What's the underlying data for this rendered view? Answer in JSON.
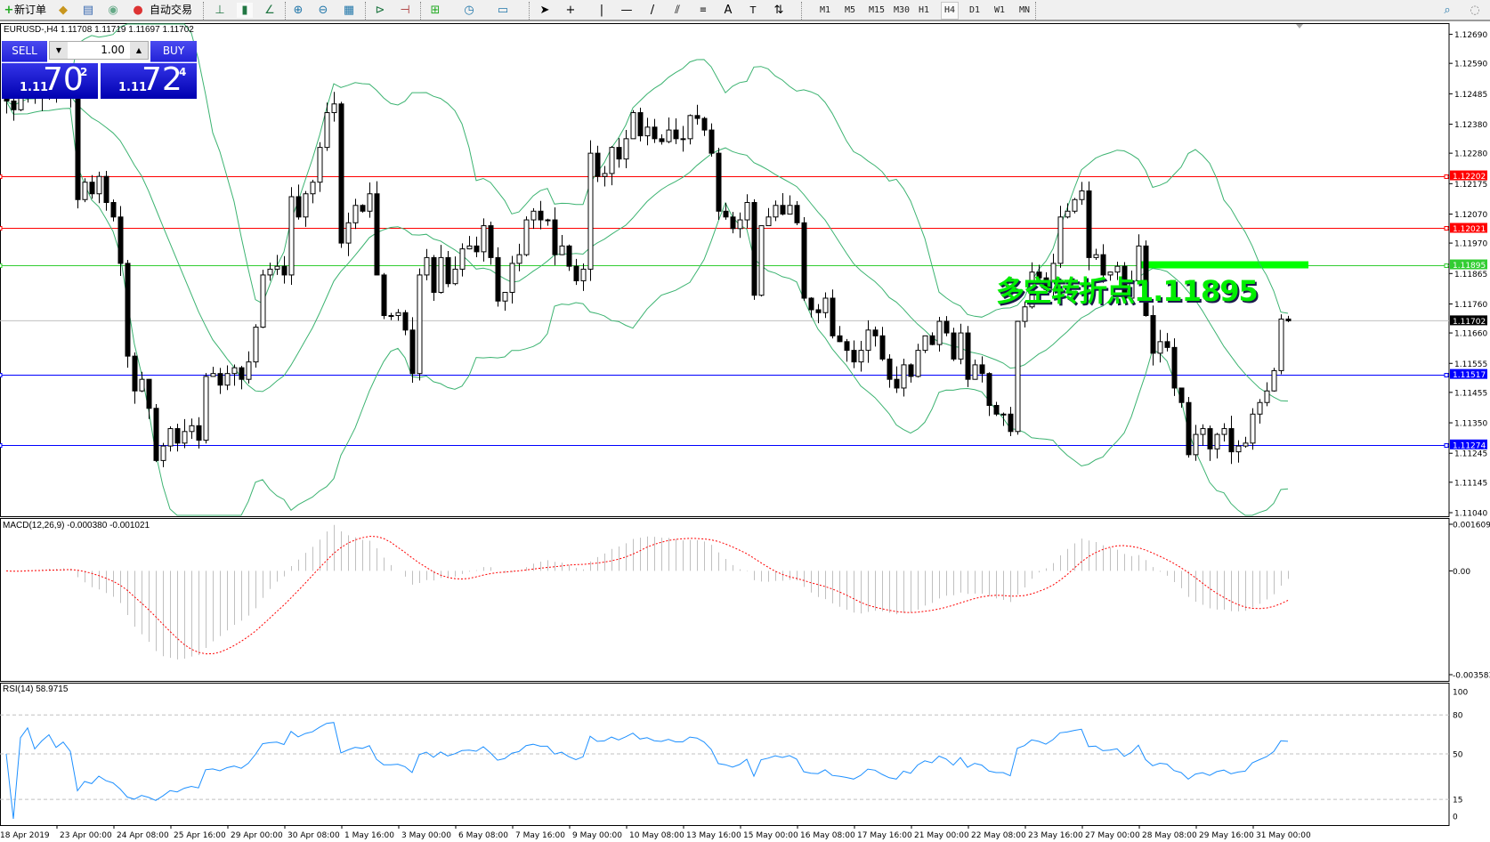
{
  "toolbar": {
    "new_order": "新订单",
    "auto_trading": "自动交易",
    "timeframes": [
      "M1",
      "M5",
      "M15",
      "M30",
      "H1",
      "H4",
      "D1",
      "W1",
      "MN"
    ],
    "active_timeframe": "H4",
    "icons": [
      "new-order-icon",
      "gold-bars-icon",
      "market-watch-icon",
      "signal-icon",
      "auto-trading-icon",
      "bar-chart-icon",
      "candlestick-icon",
      "line-chart-icon",
      "zoom-in-icon",
      "zoom-out-icon",
      "tile-windows-icon",
      "autoscroll-icon",
      "chart-shift-icon",
      "indicators-icon",
      "periods-clock-icon",
      "templates-icon",
      "cursor-icon",
      "crosshair-icon",
      "vertical-line-icon",
      "horizontal-line-icon",
      "trendline-icon",
      "equidistant-channel-icon",
      "fibonacci-icon",
      "text-icon",
      "text-label-icon",
      "arrows-icon",
      "search-icon",
      "chat-icon"
    ]
  },
  "chart": {
    "symbol_info": "EURUSD-,H4  1.11708 1.11719 1.11697 1.11702"
  },
  "trade_panel": {
    "sell_label": "SELL",
    "buy_label": "BUY",
    "lot": "1.00",
    "sell_price": {
      "prefix": "1.11",
      "big": "70",
      "sup": "2"
    },
    "buy_price": {
      "prefix": "1.11",
      "big": "72",
      "sup": "4"
    }
  },
  "annotation": {
    "text": "多空转折点1.11895",
    "level": 1.11895,
    "color": "#00ff00"
  },
  "chart_data": {
    "type": "candlestick",
    "symbol": "EURUSD-",
    "timeframe": "H4",
    "close": [
      1.1246,
      1.1243,
      1.1248,
      1.125,
      1.1247,
      1.1249,
      1.1251,
      1.1248,
      1.125,
      1.1247,
      1.1212,
      1.1218,
      1.1214,
      1.122,
      1.1211,
      1.1206,
      1.119,
      1.1158,
      1.1146,
      1.115,
      1.114,
      1.1122,
      1.1127,
      1.1133,
      1.1128,
      1.1132,
      1.1134,
      1.1129,
      1.1151,
      1.1152,
      1.1148,
      1.1152,
      1.1154,
      1.115,
      1.1156,
      1.1168,
      1.1186,
      1.1188,
      1.1189,
      1.1186,
      1.1213,
      1.1206,
      1.1214,
      1.1218,
      1.123,
      1.1242,
      1.1245,
      1.1197,
      1.1204,
      1.121,
      1.1208,
      1.1214,
      1.1186,
      1.1172,
      1.1172,
      1.1173,
      1.1167,
      1.1152,
      1.1186,
      1.1192,
      1.118,
      1.1192,
      1.1183,
      1.1188,
      1.1195,
      1.1196,
      1.1194,
      1.1203,
      1.1192,
      1.1177,
      1.118,
      1.119,
      1.1193,
      1.1205,
      1.1208,
      1.1205,
      1.1205,
      1.1193,
      1.1196,
      1.1189,
      1.1184,
      1.1188,
      1.1228,
      1.122,
      1.1221,
      1.123,
      1.1226,
      1.1233,
      1.1242,
      1.1234,
      1.1237,
      1.1233,
      1.1232,
      1.1236,
      1.1233,
      1.1233,
      1.1241,
      1.124,
      1.1236,
      1.1228,
      1.1208,
      1.1206,
      1.1202,
      1.1205,
      1.1211,
      1.1179,
      1.1203,
      1.1206,
      1.121,
      1.1207,
      1.121,
      1.1204,
      1.1178,
      1.1174,
      1.1173,
      1.1178,
      1.1165,
      1.1163,
      1.116,
      1.1156,
      1.116,
      1.1167,
      1.1165,
      1.1157,
      1.115,
      1.1147,
      1.1155,
      1.1151,
      1.116,
      1.1165,
      1.1162,
      1.117,
      1.1166,
      1.1157,
      1.1166,
      1.115,
      1.1155,
      1.1152,
      1.1141,
      1.1138,
      1.1138,
      1.1132,
      1.117,
      1.1175,
      1.1187,
      1.1185,
      1.1181,
      1.119,
      1.1206,
      1.1208,
      1.1212,
      1.1215,
      1.1192,
      1.1193,
      1.1186,
      1.1187,
      1.1189,
      1.1178,
      1.1184,
      1.1196,
      1.1172,
      1.1159,
      1.1163,
      1.1161,
      1.1147,
      1.1142,
      1.1124,
      1.1131,
      1.1133,
      1.1126,
      1.1131,
      1.1133,
      1.1125,
      1.1127,
      1.1128,
      1.1138,
      1.1142,
      1.1146,
      1.1153,
      1.11708,
      1.11702
    ],
    "last": {
      "open": 1.11708,
      "high": 1.11719,
      "low": 1.11697,
      "close": 1.11702
    },
    "price_ticks": [
      "1.12690",
      "1.12590",
      "1.12485",
      "1.12380",
      "1.12280",
      "1.12175",
      "1.12070",
      "1.11970",
      "1.11865",
      "1.11760",
      "1.11660",
      "1.11555",
      "1.11455",
      "1.11350",
      "1.11245",
      "1.11145",
      "1.11040"
    ],
    "ylim": [
      1.1104,
      1.1269
    ],
    "time_labels": [
      "18 Apr 2019",
      "23 Apr 00:00",
      "24 Apr 08:00",
      "25 Apr 16:00",
      "29 Apr 00:00",
      "30 Apr 08:00",
      "1 May 16:00",
      "3 May 00:00",
      "6 May 08:00",
      "7 May 16:00",
      "9 May 00:00",
      "10 May 08:00",
      "13 May 16:00",
      "15 May 00:00",
      "16 May 08:00",
      "17 May 16:00",
      "21 May 00:00",
      "22 May 08:00",
      "23 May 16:00",
      "27 May 00:00",
      "28 May 08:00",
      "29 May 16:00",
      "31 May 00:00"
    ],
    "levels": [
      {
        "value": 1.12202,
        "label": "1.12202",
        "color": "#ff0000"
      },
      {
        "value": 1.12021,
        "label": "1.12021",
        "color": "#ff0000"
      },
      {
        "value": 1.11895,
        "label": "1.11895",
        "color": "#32cd32"
      },
      {
        "value": 1.11517,
        "label": "1.11517",
        "color": "#0000ff"
      },
      {
        "value": 1.11274,
        "label": "1.11274",
        "color": "#0000ff"
      }
    ],
    "bid_line": {
      "value": 1.11702,
      "label": "1.11702",
      "color": "#c0c0c0"
    },
    "bollinger": {
      "period": 20,
      "deviation": 2,
      "color": "#3cb371"
    },
    "macd": {
      "label": "MACD(12,26,9) -0.000380 -0.001021",
      "ticks": [
        "0.001609",
        "0.00",
        "-0.003583"
      ],
      "range": [
        -0.003583,
        0.001609
      ],
      "histogram_color": "#c0c0c0",
      "signal_color": "#ff0000"
    },
    "rsi": {
      "label": "RSI(14) 58.9715",
      "ticks": [
        "100",
        "80",
        "50",
        "15",
        "0"
      ],
      "range": [
        0,
        100
      ],
      "color": "#1e90ff"
    }
  }
}
